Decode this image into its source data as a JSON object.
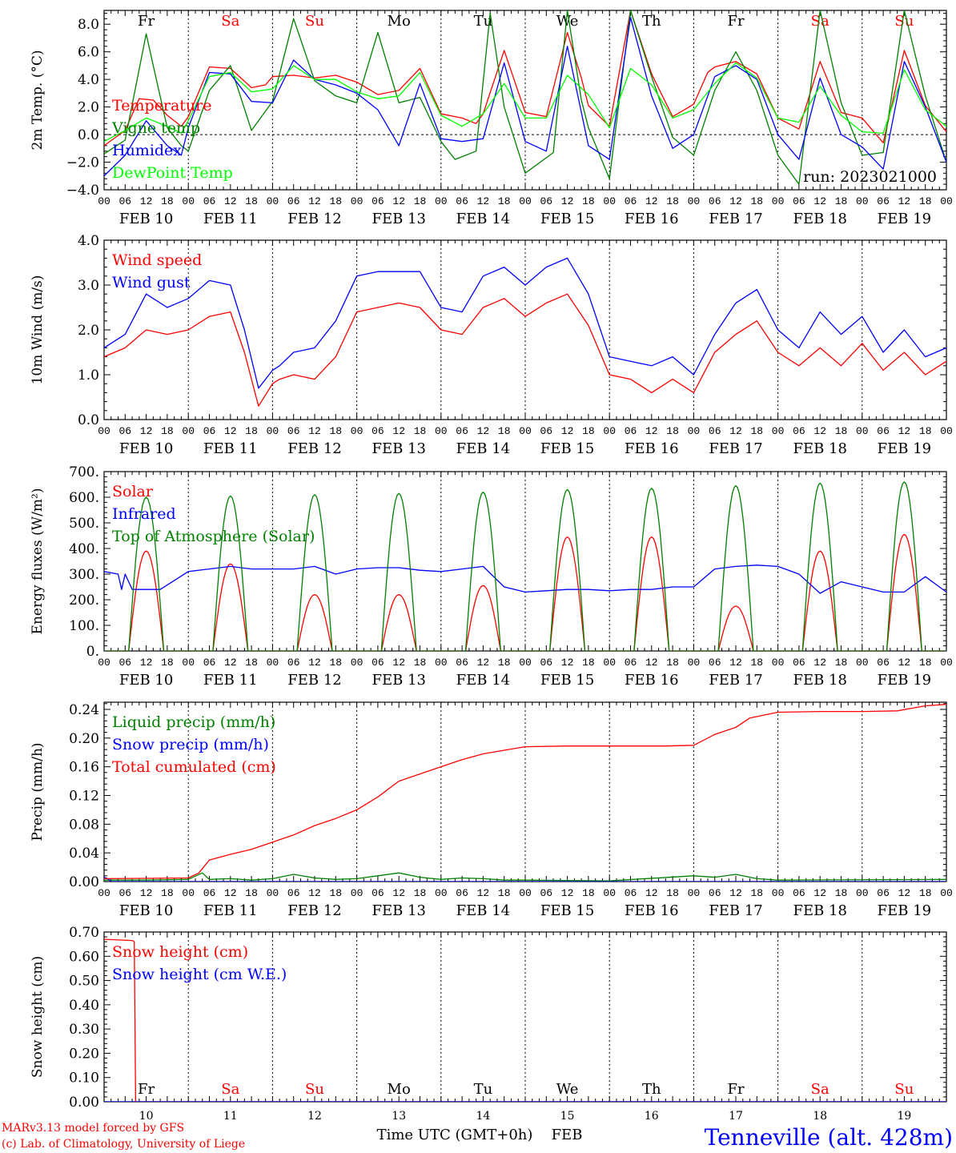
{
  "footer": {
    "model": "MARv3.13 model forced by GFS",
    "copyright": "(c) Lab. of Climatology, University of Liege",
    "axis_title": "Time UTC (GMT+0h)",
    "month": "FEB",
    "station": "Tenneville (alt. 428m)"
  },
  "time_axis": {
    "hour_ticks": [
      "00",
      "06",
      "12",
      "18"
    ],
    "date_labels": [
      "FEB 10",
      "FEB 11",
      "FEB 12",
      "FEB 13",
      "FEB 14",
      "FEB 15",
      "FEB 16",
      "FEB 17",
      "FEB 18",
      "FEB 19"
    ],
    "day_numbers": [
      "10",
      "11",
      "12",
      "13",
      "14",
      "15",
      "16",
      "17",
      "18",
      "19"
    ],
    "weekdays": [
      "Fr",
      "Sa",
      "Su",
      "Mo",
      "Tu",
      "We",
      "Th",
      "Fr",
      "Sa",
      "Su"
    ],
    "weekday_colors": [
      "#000000",
      "#ff0000",
      "#ff0000",
      "#000000",
      "#000000",
      "#000000",
      "#000000",
      "#000000",
      "#ff0000",
      "#ff0000"
    ]
  },
  "chart_data": [
    {
      "type": "line",
      "ylabel": "2m Temp. (°C)",
      "ylim": [
        -4,
        9
      ],
      "yticks": [
        -4,
        -2,
        0,
        2,
        4,
        6,
        8
      ],
      "ytick_labels": [
        "−4.0",
        "−2.0",
        "0.0",
        "2.0",
        "4.0",
        "6.0",
        "8.0"
      ],
      "zero_line": true,
      "weekdays_on_top": true,
      "annotation": "run: 2023021000",
      "x_unit": "hours since FEB 10 00 UTC",
      "series": [
        {
          "name": "Temperature",
          "color": "#ff0000",
          "x": [
            0,
            6,
            10,
            14,
            18,
            22,
            24,
            30,
            36,
            42,
            46,
            48,
            54,
            60,
            66,
            72,
            78,
            84,
            90,
            96,
            102,
            106,
            108,
            114,
            120,
            126,
            132,
            136,
            138,
            144,
            150,
            156,
            162,
            168,
            172,
            174,
            180,
            186,
            192,
            198,
            204,
            210,
            216,
            222,
            228,
            234,
            240
          ],
          "y": [
            -0.8,
            0.3,
            2.6,
            2.5,
            1.4,
            0.6,
            1.3,
            4.9,
            4.8,
            3.4,
            3.6,
            4.2,
            4.3,
            4.1,
            4.3,
            3.8,
            2.9,
            3.2,
            4.8,
            1.5,
            1.2,
            0.8,
            1.5,
            6.1,
            1.6,
            1.3,
            7.4,
            4.1,
            2.1,
            0.6,
            9.0,
            4.4,
            1.3,
            2.2,
            4.5,
            4.9,
            5.3,
            4.4,
            1.2,
            0.4,
            5.3,
            1.6,
            1.2,
            -0.6,
            6.1,
            2.1,
            0.2
          ]
        },
        {
          "name": "Vigne temp",
          "color": "#008000",
          "x": [
            0,
            6,
            12,
            14,
            18,
            22,
            24,
            30,
            36,
            42,
            48,
            54,
            60,
            66,
            72,
            78,
            84,
            90,
            96,
            100,
            106,
            110,
            114,
            120,
            128,
            132,
            136,
            138,
            144,
            150,
            156,
            162,
            168,
            174,
            180,
            186,
            192,
            198,
            204,
            210,
            216,
            222,
            228,
            234,
            240
          ],
          "y": [
            -1.4,
            -0.4,
            7.3,
            5.0,
            0.5,
            -0.8,
            -1.2,
            3.2,
            5.0,
            0.3,
            2.4,
            8.4,
            3.9,
            2.8,
            2.3,
            7.4,
            2.3,
            2.7,
            -0.5,
            -1.8,
            -1.2,
            8.8,
            2.0,
            -2.8,
            -1.3,
            9.0,
            2.5,
            0.5,
            -3.2,
            9.0,
            4.2,
            -0.2,
            -1.5,
            3.2,
            6.0,
            3.2,
            -1.5,
            -3.6,
            9.0,
            2.3,
            -1.5,
            -1.3,
            9.0,
            2.8,
            -2.0
          ]
        },
        {
          "name": "Humidex",
          "color": "#0000ff",
          "x": [
            0,
            6,
            12,
            18,
            22,
            24,
            30,
            36,
            42,
            48,
            54,
            60,
            66,
            72,
            78,
            84,
            90,
            96,
            102,
            108,
            114,
            120,
            126,
            132,
            138,
            144,
            150,
            156,
            162,
            168,
            174,
            180,
            186,
            192,
            198,
            204,
            210,
            216,
            222,
            228,
            234,
            240
          ],
          "y": [
            -3.0,
            -1.5,
            1.0,
            -0.8,
            -1.5,
            0.5,
            4.5,
            4.4,
            2.4,
            2.3,
            5.4,
            4.0,
            3.6,
            3.0,
            1.8,
            -0.8,
            3.7,
            -0.3,
            -0.5,
            -0.3,
            5.2,
            -0.5,
            -1.2,
            6.4,
            -0.8,
            -1.8,
            8.5,
            2.8,
            -1.0,
            0.0,
            4.2,
            5.0,
            4.0,
            0.0,
            -1.8,
            4.1,
            0.0,
            -0.9,
            -2.5,
            5.3,
            2.0,
            -2.0
          ]
        },
        {
          "name": "DewPoint Temp",
          "color": "#00ff00",
          "x": [
            0,
            6,
            12,
            18,
            22,
            24,
            30,
            36,
            42,
            48,
            54,
            60,
            66,
            72,
            78,
            84,
            90,
            96,
            102,
            108,
            114,
            120,
            126,
            132,
            138,
            144,
            150,
            156,
            162,
            168,
            174,
            180,
            186,
            192,
            198,
            204,
            210,
            216,
            222,
            228,
            234,
            240
          ],
          "y": [
            -0.5,
            0.3,
            1.2,
            0.6,
            0.1,
            1.0,
            4.2,
            4.5,
            3.1,
            3.3,
            5.0,
            4.0,
            4.0,
            3.1,
            2.6,
            2.8,
            4.5,
            1.4,
            0.6,
            1.5,
            3.7,
            1.2,
            1.2,
            4.3,
            2.9,
            0.5,
            4.8,
            3.6,
            1.2,
            1.8,
            3.7,
            5.2,
            4.1,
            1.2,
            0.9,
            3.5,
            1.4,
            0.2,
            0.1,
            4.7,
            1.8,
            0.6
          ]
        }
      ]
    },
    {
      "type": "line",
      "ylabel": "10m Wind (m/s)",
      "ylim": [
        0,
        4
      ],
      "yticks": [
        0,
        1,
        2,
        3,
        4
      ],
      "ytick_labels": [
        "0.0",
        "1.0",
        "2.0",
        "3.0",
        "4.0"
      ],
      "x_unit": "hours since FEB 10 00 UTC",
      "series": [
        {
          "name": "Wind speed",
          "color": "#ff0000",
          "x": [
            0,
            6,
            12,
            18,
            24,
            30,
            36,
            40,
            44,
            48,
            50,
            54,
            60,
            66,
            72,
            78,
            84,
            90,
            96,
            102,
            108,
            114,
            120,
            126,
            132,
            138,
            144,
            150,
            156,
            162,
            168,
            174,
            180,
            186,
            192,
            198,
            204,
            210,
            216,
            222,
            228,
            234,
            240
          ],
          "y": [
            1.4,
            1.6,
            2.0,
            1.9,
            2.0,
            2.3,
            2.4,
            1.5,
            0.3,
            0.8,
            0.9,
            1.0,
            0.9,
            1.4,
            2.4,
            2.5,
            2.6,
            2.5,
            2.0,
            1.9,
            2.5,
            2.7,
            2.3,
            2.6,
            2.8,
            2.1,
            1.0,
            0.9,
            0.6,
            0.9,
            0.6,
            1.5,
            1.9,
            2.2,
            1.5,
            1.2,
            1.6,
            1.2,
            1.7,
            1.1,
            1.5,
            1.0,
            1.3
          ]
        },
        {
          "name": "Wind gust",
          "color": "#0000ff",
          "x": [
            0,
            6,
            12,
            18,
            24,
            30,
            36,
            40,
            44,
            48,
            50,
            54,
            60,
            66,
            72,
            78,
            84,
            90,
            96,
            102,
            108,
            114,
            120,
            126,
            132,
            138,
            144,
            150,
            156,
            162,
            168,
            174,
            180,
            186,
            192,
            198,
            204,
            210,
            216,
            222,
            228,
            234,
            240
          ],
          "y": [
            1.6,
            1.9,
            2.8,
            2.5,
            2.7,
            3.1,
            3.0,
            2.0,
            0.7,
            1.1,
            1.2,
            1.5,
            1.6,
            2.2,
            3.2,
            3.3,
            3.3,
            3.3,
            2.5,
            2.4,
            3.2,
            3.4,
            3.0,
            3.4,
            3.6,
            2.8,
            1.4,
            1.3,
            1.2,
            1.4,
            1.0,
            1.9,
            2.6,
            2.9,
            2.0,
            1.6,
            2.4,
            1.9,
            2.3,
            1.5,
            2.0,
            1.4,
            1.6
          ]
        }
      ]
    },
    {
      "type": "line",
      "ylabel": "Energy fluxes (W/m²)",
      "ylim": [
        0,
        700
      ],
      "yticks": [
        0,
        100,
        200,
        300,
        400,
        500,
        600,
        700
      ],
      "ytick_labels": [
        "0.",
        "100.",
        "200.",
        "300.",
        "400.",
        "500.",
        "600.",
        "700."
      ],
      "x_unit": "hours since FEB 10 00 UTC",
      "series": [
        {
          "name": "Solar",
          "color": "#ff0000",
          "type": "daily_peaks",
          "peak_hour": 12,
          "half_width_hours": 5,
          "values": [
            390,
            340,
            220,
            220,
            255,
            445,
            445,
            175,
            390,
            455
          ]
        },
        {
          "name": "Infrared",
          "color": "#0000ff",
          "x": [
            0,
            4,
            5,
            6,
            8,
            12,
            16,
            24,
            30,
            36,
            42,
            48,
            54,
            60,
            66,
            72,
            78,
            84,
            90,
            96,
            102,
            108,
            114,
            120,
            126,
            132,
            138,
            144,
            150,
            156,
            162,
            168,
            174,
            180,
            186,
            192,
            198,
            204,
            210,
            216,
            222,
            228,
            234,
            240
          ],
          "y": [
            310,
            300,
            240,
            300,
            240,
            240,
            240,
            310,
            320,
            330,
            320,
            320,
            320,
            330,
            300,
            320,
            325,
            325,
            315,
            310,
            320,
            330,
            250,
            230,
            235,
            240,
            240,
            235,
            240,
            240,
            250,
            250,
            320,
            330,
            335,
            330,
            300,
            225,
            270,
            250,
            230,
            230,
            290,
            230
          ]
        },
        {
          "name": "Top of Atmosphere (Solar)",
          "color": "#008000",
          "type": "daily_peaks",
          "peak_hour": 12,
          "half_width_hours": 5,
          "values": [
            600,
            605,
            610,
            615,
            620,
            630,
            635,
            645,
            655,
            660
          ]
        }
      ]
    },
    {
      "type": "line",
      "ylabel": "Precip (mm/h)",
      "ylim": [
        0,
        0.25
      ],
      "yticks": [
        0,
        0.04,
        0.08,
        0.12,
        0.16,
        0.2,
        0.24
      ],
      "ytick_labels": [
        "0.00",
        "0.04",
        "0.08",
        "0.12",
        "0.16",
        "0.20",
        "0.24"
      ],
      "x_unit": "hours since FEB 10 00 UTC",
      "series": [
        {
          "name": "Liquid precip (mm/h)",
          "color": "#008000",
          "x": [
            0,
            12,
            24,
            28,
            30,
            36,
            42,
            48,
            54,
            60,
            66,
            72,
            78,
            84,
            90,
            96,
            102,
            108,
            114,
            120,
            144,
            168,
            174,
            180,
            186,
            192,
            240
          ],
          "y": [
            0.002,
            0.002,
            0.003,
            0.012,
            0.003,
            0.004,
            0.002,
            0.004,
            0.01,
            0.005,
            0.003,
            0.004,
            0.008,
            0.012,
            0.006,
            0.003,
            0.005,
            0.004,
            0.002,
            0.002,
            0.001,
            0.008,
            0.006,
            0.01,
            0.004,
            0.002,
            0.003
          ]
        },
        {
          "name": "Snow precip (mm/h)",
          "color": "#0000ff",
          "x": [
            0,
            1,
            2,
            240
          ],
          "y": [
            0.006,
            0.004,
            0.0,
            0.0
          ]
        },
        {
          "name": "Total cumulated (cm)",
          "color": "#ff0000",
          "x": [
            0,
            24,
            27,
            30,
            36,
            42,
            48,
            54,
            60,
            66,
            72,
            78,
            84,
            90,
            96,
            102,
            108,
            114,
            120,
            132,
            144,
            160,
            168,
            174,
            180,
            184,
            192,
            204,
            216,
            226,
            234,
            240
          ],
          "y": [
            0.004,
            0.005,
            0.012,
            0.03,
            0.038,
            0.045,
            0.055,
            0.065,
            0.078,
            0.088,
            0.1,
            0.118,
            0.14,
            0.15,
            0.16,
            0.17,
            0.178,
            0.183,
            0.188,
            0.189,
            0.189,
            0.189,
            0.19,
            0.205,
            0.215,
            0.228,
            0.236,
            0.237,
            0.237,
            0.238,
            0.245,
            0.247
          ]
        }
      ]
    },
    {
      "type": "line",
      "ylabel": "Snow height (cm)",
      "ylim": [
        0,
        0.7
      ],
      "yticks": [
        0,
        0.1,
        0.2,
        0.3,
        0.4,
        0.5,
        0.6,
        0.7
      ],
      "ytick_labels": [
        "0.00",
        "0.10",
        "0.20",
        "0.30",
        "0.40",
        "0.50",
        "0.60",
        "0.70"
      ],
      "weekdays_bottom": true,
      "x_unit": "hours since FEB 10 00 UTC",
      "series": [
        {
          "name": "Snow height (cm)",
          "color": "#ff0000",
          "x": [
            0,
            8,
            8.6,
            9,
            240
          ],
          "y": [
            0.67,
            0.665,
            0.66,
            0.0,
            0.0
          ]
        },
        {
          "name": "Snow height (cm W.E.)",
          "color": "#0000ff",
          "x": [
            0,
            240
          ],
          "y": [
            0.0,
            0.0
          ]
        }
      ]
    }
  ]
}
